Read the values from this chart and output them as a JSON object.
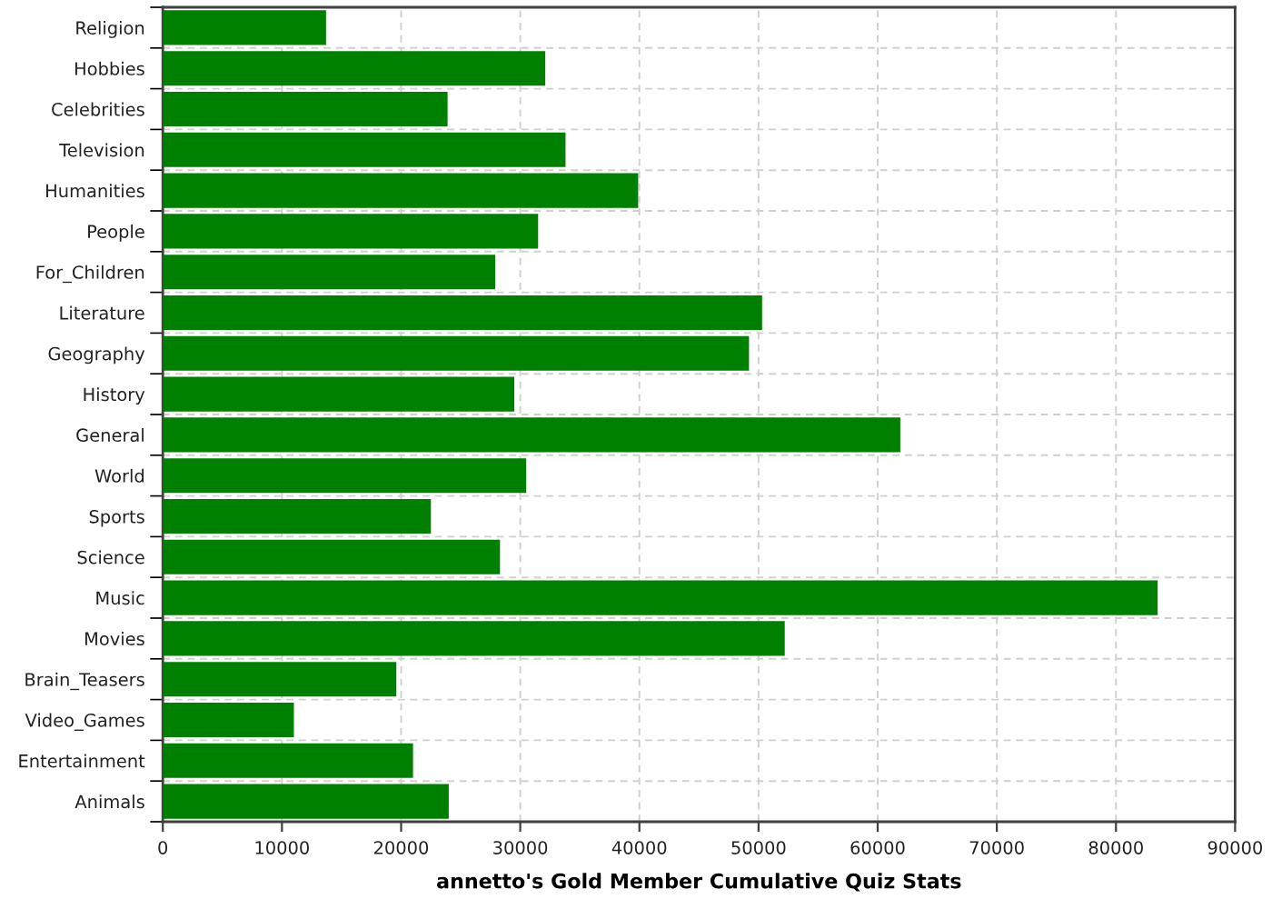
{
  "chart_data": {
    "type": "bar",
    "orientation": "horizontal",
    "xlabel": "annetto's Gold Member Cumulative Quiz Stats",
    "categories": [
      "Religion",
      "Hobbies",
      "Celebrities",
      "Television",
      "Humanities",
      "People",
      "For_Children",
      "Literature",
      "Geography",
      "History",
      "General",
      "World",
      "Sports",
      "Science",
      "Music",
      "Movies",
      "Brain_Teasers",
      "Video_Games",
      "Entertainment",
      "Animals"
    ],
    "values": [
      13700,
      32100,
      23900,
      33800,
      39900,
      31500,
      27900,
      50300,
      49200,
      29500,
      61900,
      30500,
      22500,
      28300,
      83500,
      52200,
      19600,
      11000,
      21000,
      24000
    ],
    "color": "#008000",
    "xlim": [
      0,
      90000
    ],
    "xticks": [
      0,
      10000,
      20000,
      30000,
      40000,
      50000,
      60000,
      70000,
      80000,
      90000
    ],
    "grid": true
  }
}
